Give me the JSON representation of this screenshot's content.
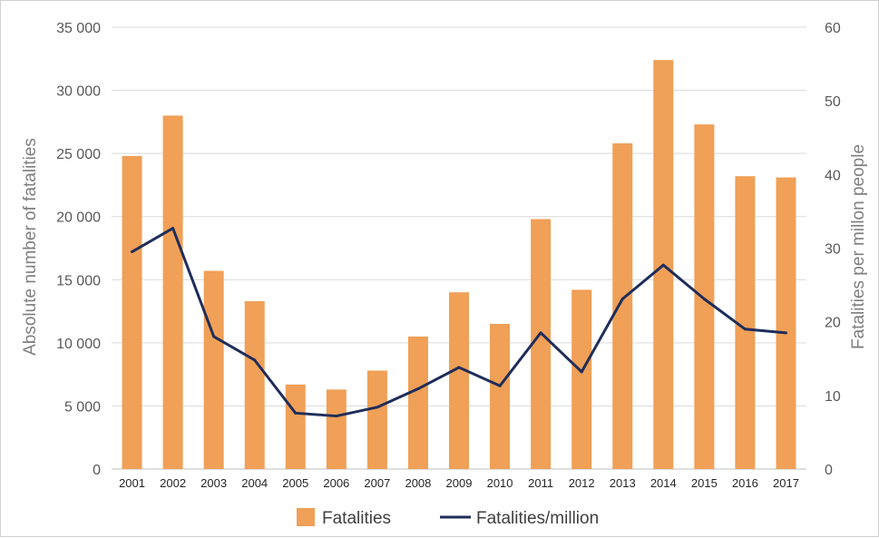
{
  "chart_data": {
    "type": "bar",
    "categories": [
      "2001",
      "2002",
      "2003",
      "2004",
      "2005",
      "2006",
      "2007",
      "2008",
      "2009",
      "2010",
      "2011",
      "2012",
      "2013",
      "2014",
      "2015",
      "2016",
      "2017"
    ],
    "series": [
      {
        "name": "Fatalities",
        "type": "bar",
        "axis": "left",
        "color": "#f0a057",
        "values": [
          24800,
          28000,
          15700,
          13300,
          6700,
          6300,
          7800,
          10500,
          14000,
          11500,
          19800,
          14200,
          25800,
          32400,
          27300,
          23200,
          23100
        ]
      },
      {
        "name": "Fatalities/million",
        "type": "line",
        "axis": "right",
        "color": "#1f2d5a",
        "values": [
          29.5,
          32.7,
          18.0,
          14.8,
          7.6,
          7.2,
          8.4,
          10.9,
          13.8,
          11.3,
          18.5,
          13.2,
          23.1,
          27.7,
          23.1,
          19.0,
          18.5
        ]
      }
    ],
    "yleft": {
      "label": "Absolute number of fatalities",
      "ylim": [
        0,
        35000
      ],
      "ticks": [
        0,
        5000,
        10000,
        15000,
        20000,
        25000,
        30000,
        35000
      ],
      "tick_labels": [
        "0",
        "5 000",
        "10 000",
        "15 000",
        "20 000",
        "25 000",
        "30 000",
        "35 000"
      ]
    },
    "yright": {
      "label": "Fatalities per millon people",
      "ylim": [
        0,
        60
      ],
      "ticks": [
        0,
        10,
        20,
        30,
        40,
        50,
        60
      ],
      "tick_labels": [
        "0",
        "10",
        "20",
        "30",
        "40",
        "50",
        "60"
      ]
    },
    "grid": true,
    "legend_position": "bottom"
  }
}
